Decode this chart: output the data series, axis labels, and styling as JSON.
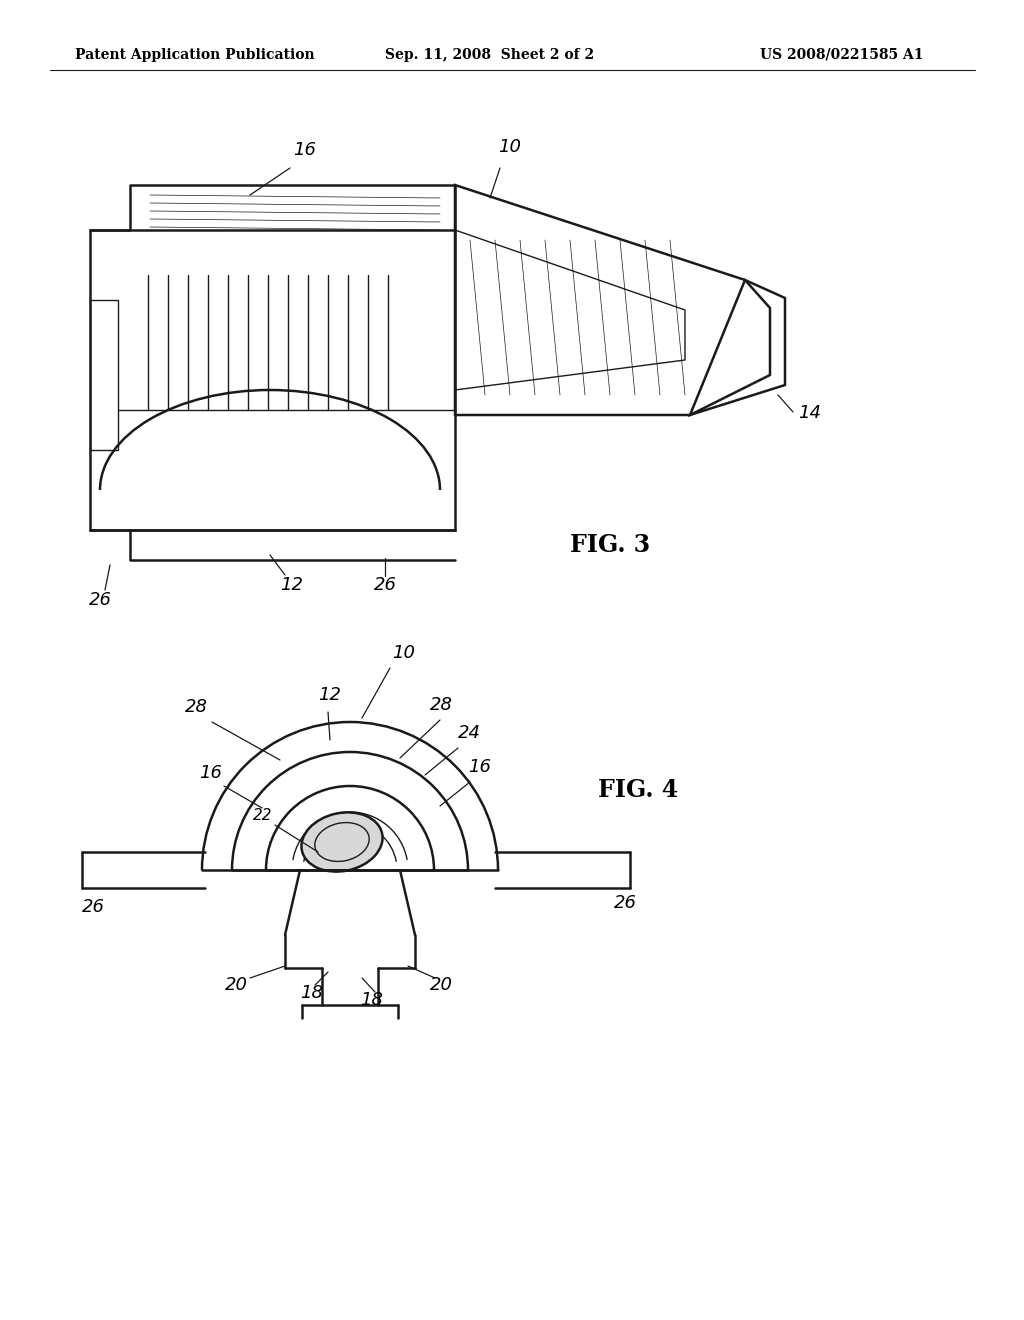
{
  "background_color": "#ffffff",
  "header_left": "Patent Application Publication",
  "header_center": "Sep. 11, 2008  Sheet 2 of 2",
  "header_right": "US 2008/0221585 A1",
  "fig3_label": "FIG. 3",
  "fig4_label": "FIG. 4",
  "line_color": "#1a1a1a",
  "text_color": "#000000"
}
